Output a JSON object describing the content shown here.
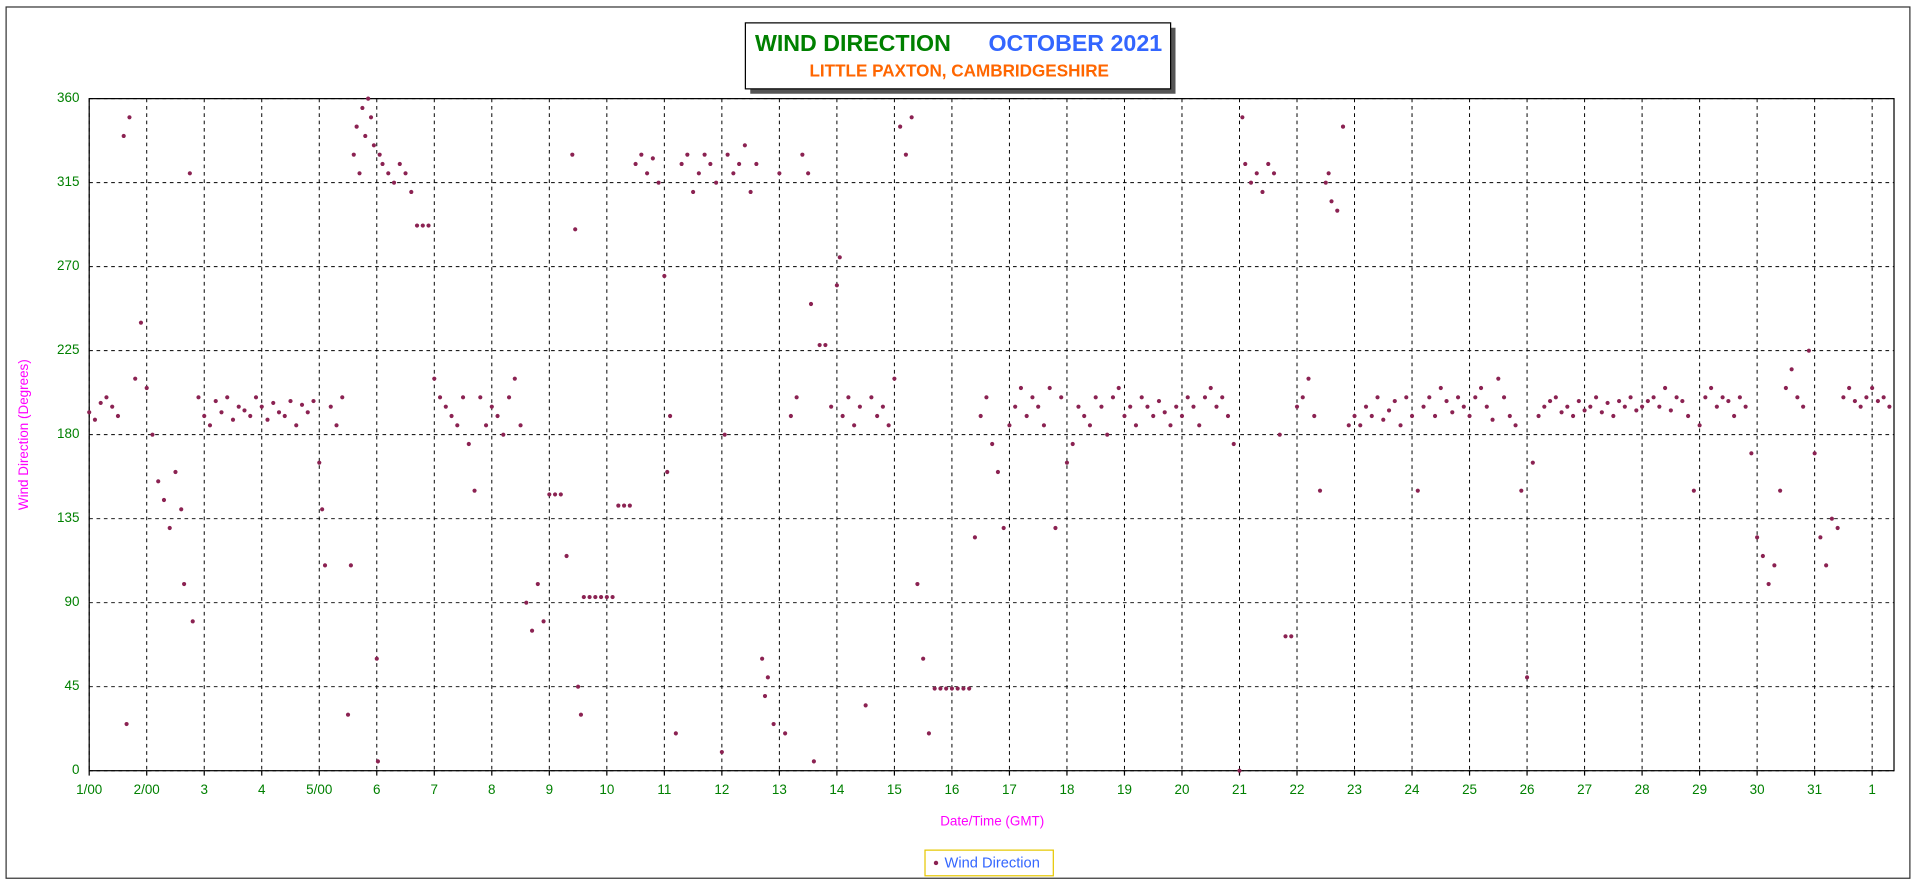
{
  "chart_data": {
    "type": "scatter",
    "title": "WIND DIRECTION",
    "title_month": "OCTOBER 2021",
    "subtitle": "LITTLE PAXTON, CAMBRIDGESHIRE",
    "x_label": "Date/Time (GMT)",
    "y_label": "Wind Direction (Degrees)",
    "xlim": [
      1,
      32.38
    ],
    "ylim": [
      0,
      360
    ],
    "xticks": [
      {
        "value": 1,
        "label": "1/00"
      },
      {
        "value": 2,
        "label": "2/00"
      },
      3,
      4,
      {
        "value": 5,
        "label": "5/00"
      },
      6,
      7,
      8,
      9,
      10,
      11,
      12,
      13,
      14,
      15,
      16,
      17,
      18,
      19,
      20,
      21,
      22,
      23,
      24,
      25,
      26,
      27,
      28,
      29,
      30,
      31,
      {
        "value": 32,
        "label": "1"
      }
    ],
    "yticks": [
      0,
      45,
      90,
      135,
      180,
      225,
      270,
      315,
      360
    ],
    "grid": true,
    "legend": "bottom",
    "x": [
      1.0,
      1.1,
      1.2,
      1.3,
      1.4,
      1.5,
      1.6,
      1.65,
      1.7,
      1.8,
      1.9,
      2.0,
      2.1,
      2.2,
      2.3,
      2.4,
      2.5,
      2.6,
      2.65,
      2.75,
      2.8,
      2.9,
      3.0,
      3.1,
      3.2,
      3.3,
      3.4,
      3.5,
      3.6,
      3.7,
      3.8,
      3.9,
      4.0,
      4.1,
      4.2,
      4.3,
      4.4,
      4.5,
      4.6,
      4.7,
      4.8,
      4.9,
      5.0,
      5.05,
      5.1,
      5.2,
      5.3,
      5.4,
      5.5,
      5.55,
      5.6,
      5.65,
      5.7,
      5.75,
      5.8,
      5.85,
      5.9,
      5.95,
      6.0,
      6.02,
      6.05,
      6.1,
      6.2,
      6.3,
      6.4,
      6.5,
      6.6,
      6.7,
      6.8,
      6.9,
      7.0,
      7.1,
      7.2,
      7.3,
      7.4,
      7.5,
      7.6,
      7.7,
      7.8,
      7.9,
      8.0,
      8.1,
      8.2,
      8.3,
      8.4,
      8.5,
      8.6,
      8.7,
      8.8,
      8.9,
      9.0,
      9.1,
      9.2,
      9.3,
      9.4,
      9.45,
      9.5,
      9.55,
      9.6,
      9.7,
      9.8,
      9.9,
      10.0,
      10.1,
      10.2,
      10.3,
      10.4,
      10.5,
      10.6,
      10.7,
      10.8,
      10.9,
      11.0,
      11.05,
      11.1,
      11.2,
      11.3,
      11.4,
      11.5,
      11.6,
      11.7,
      11.8,
      11.9,
      12.0,
      12.05,
      12.1,
      12.2,
      12.3,
      12.4,
      12.5,
      12.6,
      12.7,
      12.75,
      12.8,
      12.9,
      13.0,
      13.1,
      13.2,
      13.3,
      13.4,
      13.5,
      13.55,
      13.6,
      13.7,
      13.8,
      13.9,
      14.0,
      14.05,
      14.1,
      14.2,
      14.3,
      14.4,
      14.5,
      14.6,
      14.7,
      14.8,
      14.9,
      15.0,
      15.1,
      15.2,
      15.3,
      15.4,
      15.5,
      15.6,
      15.7,
      15.8,
      15.9,
      16.0,
      16.1,
      16.2,
      16.3,
      16.4,
      16.5,
      16.6,
      16.7,
      16.8,
      16.9,
      17.0,
      17.1,
      17.2,
      17.3,
      17.4,
      17.5,
      17.6,
      17.7,
      17.8,
      17.9,
      18.0,
      18.1,
      18.2,
      18.3,
      18.4,
      18.5,
      18.6,
      18.7,
      18.8,
      18.9,
      19.0,
      19.1,
      19.2,
      19.3,
      19.4,
      19.5,
      19.6,
      19.7,
      19.8,
      19.9,
      20.0,
      20.1,
      20.2,
      20.3,
      20.4,
      20.5,
      20.6,
      20.7,
      20.8,
      20.9,
      21.0,
      21.05,
      21.1,
      21.2,
      21.3,
      21.4,
      21.5,
      21.6,
      21.7,
      21.8,
      21.9,
      22.0,
      22.1,
      22.2,
      22.3,
      22.4,
      22.5,
      22.55,
      22.6,
      22.7,
      22.8,
      22.9,
      23.0,
      23.1,
      23.2,
      23.3,
      23.4,
      23.5,
      23.6,
      23.7,
      23.8,
      23.9,
      24.0,
      24.1,
      24.2,
      24.3,
      24.4,
      24.5,
      24.6,
      24.7,
      24.8,
      24.9,
      25.0,
      25.1,
      25.2,
      25.3,
      25.4,
      25.5,
      25.6,
      25.7,
      25.8,
      25.9,
      26.0,
      26.1,
      26.2,
      26.3,
      26.4,
      26.5,
      26.6,
      26.7,
      26.8,
      26.9,
      27.0,
      27.1,
      27.2,
      27.3,
      27.4,
      27.5,
      27.6,
      27.7,
      27.8,
      27.9,
      28.0,
      28.1,
      28.2,
      28.3,
      28.4,
      28.5,
      28.6,
      28.7,
      28.8,
      28.9,
      29.0,
      29.1,
      29.2,
      29.3,
      29.4,
      29.5,
      29.6,
      29.7,
      29.8,
      29.9,
      30.0,
      30.1,
      30.2,
      30.3,
      30.4,
      30.5,
      30.6,
      30.7,
      30.8,
      30.9,
      31.0,
      31.1,
      31.2,
      31.3,
      31.4,
      31.5,
      31.6,
      31.7,
      31.8,
      31.9,
      32.0,
      32.1,
      32.2,
      32.3
    ],
    "series": [
      {
        "name": "Wind Direction",
        "color": "#8b2252",
        "values": [
          192,
          188,
          197,
          200,
          195,
          190,
          340,
          25,
          350,
          210,
          240,
          205,
          180,
          155,
          145,
          130,
          160,
          140,
          100,
          320,
          80,
          200,
          190,
          185,
          198,
          192,
          200,
          188,
          195,
          193,
          190,
          200,
          195,
          188,
          197,
          192,
          190,
          198,
          185,
          196,
          192,
          198,
          165,
          140,
          110,
          195,
          185,
          200,
          30,
          110,
          330,
          345,
          320,
          355,
          340,
          360,
          350,
          335,
          60,
          5,
          330,
          325,
          320,
          315,
          325,
          320,
          310,
          292,
          292,
          292,
          210,
          200,
          195,
          190,
          185,
          200,
          175,
          150,
          200,
          185,
          195,
          190,
          180,
          200,
          210,
          185,
          90,
          75,
          100,
          80,
          148,
          148,
          148,
          115,
          330,
          290,
          45,
          30,
          93,
          93,
          93,
          93,
          93,
          93,
          142,
          142,
          142,
          325,
          330,
          320,
          328,
          315,
          265,
          160,
          190,
          20,
          325,
          330,
          310,
          320,
          330,
          325,
          315,
          10,
          180,
          330,
          320,
          325,
          335,
          310,
          325,
          60,
          40,
          50,
          25,
          320,
          20,
          190,
          200,
          330,
          320,
          250,
          5,
          228,
          228,
          195,
          260,
          275,
          190,
          200,
          185,
          195,
          35,
          200,
          190,
          195,
          185,
          210,
          345,
          330,
          350,
          100,
          60,
          20,
          44,
          44,
          44,
          44,
          44,
          44,
          44,
          125,
          190,
          200,
          175,
          160,
          130,
          185,
          195,
          205,
          190,
          200,
          195,
          185,
          205,
          130,
          200,
          165,
          175,
          195,
          190,
          185,
          200,
          195,
          180,
          200,
          205,
          190,
          195,
          185,
          200,
          195,
          190,
          198,
          192,
          185,
          195,
          190,
          200,
          195,
          185,
          200,
          205,
          195,
          200,
          190,
          175,
          0,
          350,
          325,
          315,
          320,
          310,
          325,
          320,
          180,
          72,
          72,
          195,
          200,
          210,
          190,
          150,
          315,
          320,
          305,
          300,
          345,
          185,
          190,
          185,
          195,
          190,
          200,
          188,
          193,
          198,
          185,
          200,
          190,
          150,
          195,
          200,
          190,
          205,
          198,
          192,
          200,
          195,
          190,
          200,
          205,
          195,
          188,
          210,
          200,
          190,
          185,
          150,
          50,
          165,
          190,
          195,
          198,
          200,
          192,
          195,
          190,
          198,
          193,
          195,
          200,
          192,
          197,
          190,
          198,
          195,
          200,
          193,
          195,
          198,
          200,
          195,
          205,
          193,
          200,
          198,
          190,
          150,
          185,
          200,
          205,
          195,
          200,
          198,
          190,
          200,
          195,
          170,
          125,
          115,
          100,
          110,
          150,
          205,
          215,
          200,
          195,
          225,
          170,
          125,
          110,
          135,
          130,
          200,
          205,
          198,
          195,
          200,
          205,
          198,
          200,
          195
        ]
      }
    ]
  }
}
